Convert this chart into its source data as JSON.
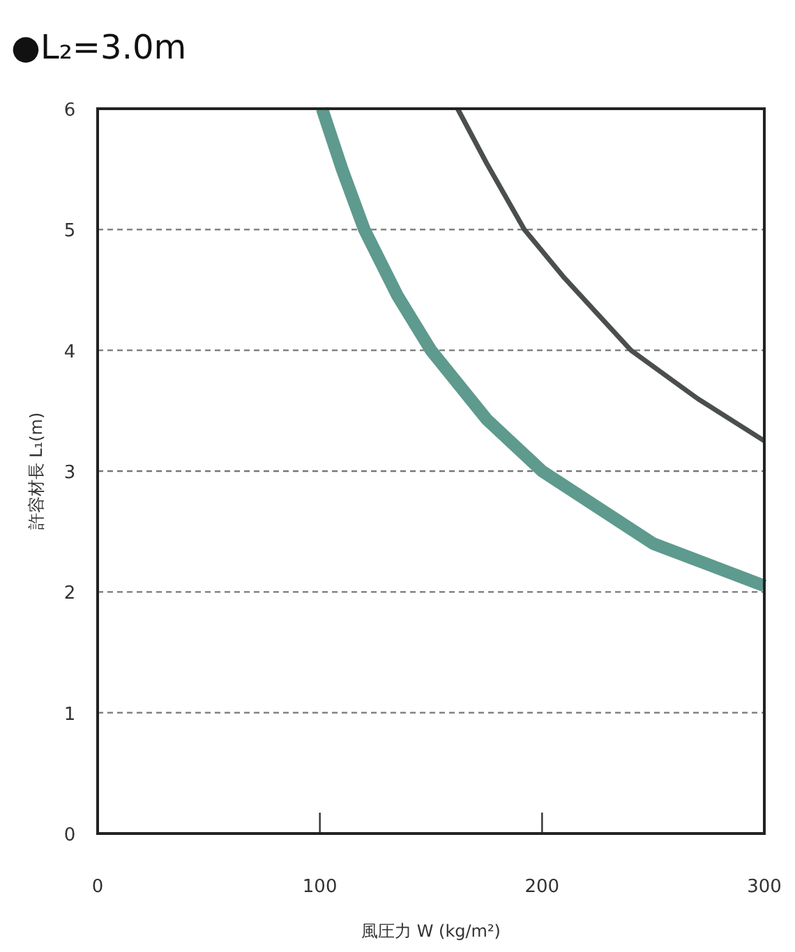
{
  "chart_data": {
    "type": "line",
    "title": "●L₂=3.0m",
    "xlabel": "風圧力 W (kg/m²)",
    "ylabel": "許容材長 L₁(m)",
    "xlim": [
      0,
      300
    ],
    "xticks": [
      0,
      100,
      200,
      300
    ],
    "ylim": [
      0,
      6
    ],
    "yticks": [
      0,
      1,
      2,
      3,
      4,
      5,
      6
    ],
    "grid": "y",
    "series": [
      {
        "color": "#5e9a8e",
        "x": [
          101,
          110,
          120,
          135,
          150,
          175,
          200,
          250,
          300
        ],
        "values": [
          6,
          5.5,
          5,
          4.45,
          4,
          3.43,
          3,
          2.4,
          2.05
        ]
      },
      {
        "color": "#4a4f4e",
        "x": [
          162,
          175,
          192,
          210,
          240,
          270,
          300
        ],
        "values": [
          6,
          5.55,
          5,
          4.6,
          4,
          3.6,
          3.25
        ]
      }
    ]
  }
}
